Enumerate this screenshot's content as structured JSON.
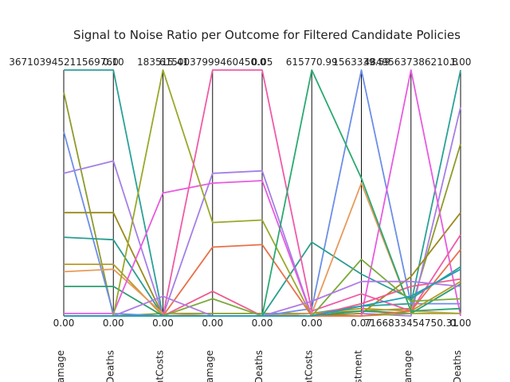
{
  "chart_data": {
    "type": "line",
    "subtype": "parallel-coordinates",
    "title": "Signal to Noise Ratio per Outcome for Filtered Candidate Policies",
    "axes": [
      {
        "label": "amage",
        "top": "367103945211569760",
        "bottom": "0.00"
      },
      {
        "label": "Deaths",
        "top": "0.10",
        "bottom": "0.00"
      },
      {
        "label": "ntCosts",
        "top": "183515.41",
        "bottom": "0.00"
      },
      {
        "label": "amage",
        "top": "6150037999460450.0",
        "bottom": "0.00"
      },
      {
        "label": "Deaths",
        "top": "0.05",
        "bottom": "0.00"
      },
      {
        "label": "ntCosts",
        "top": "615770.99",
        "bottom": "0.00"
      },
      {
        "label": "stment",
        "top": "1563339.59",
        "bottom": "0.07"
      },
      {
        "label": "amage",
        "top": "48495637386210.8",
        "bottom": "7166833454750.31"
      },
      {
        "label": "Deaths",
        "top": "1.00",
        "bottom": "0.00"
      }
    ],
    "series": [
      {
        "color": "#2aa198",
        "values": [
          1.0,
          1.0,
          0.0,
          0.0,
          0.0,
          0.01,
          0.04,
          0.05,
          1.0
        ]
      },
      {
        "color": "#8e9a2b",
        "values": [
          0.91,
          0.0,
          0.01,
          0.01,
          0.01,
          0.01,
          0.02,
          0.03,
          0.7
        ]
      },
      {
        "color": "#6c8ee8",
        "values": [
          0.75,
          0.01,
          0.0,
          0.0,
          0.0,
          0.03,
          1.0,
          0.05,
          0.05
        ]
      },
      {
        "color": "#a57fe6",
        "values": [
          0.58,
          0.63,
          0.0,
          0.58,
          0.59,
          0.0,
          0.01,
          0.0,
          0.85
        ]
      },
      {
        "color": "#9a8b1c",
        "values": [
          0.42,
          0.42,
          0.0,
          0.0,
          0.0,
          0.0,
          0.01,
          0.16,
          0.42
        ]
      },
      {
        "color": "#2a9d8f",
        "values": [
          0.32,
          0.31,
          0.0,
          0.0,
          0.0,
          0.3,
          0.17,
          0.07,
          0.2
        ]
      },
      {
        "color": "#b89a2a",
        "values": [
          0.21,
          0.21,
          0.0,
          0.0,
          0.0,
          0.01,
          0.03,
          0.02,
          0.14
        ]
      },
      {
        "color": "#e89a5a",
        "values": [
          0.18,
          0.19,
          0.01,
          0.0,
          0.0,
          0.01,
          0.54,
          0.02,
          0.01
        ]
      },
      {
        "color": "#2a9d6f",
        "values": [
          0.12,
          0.12,
          0.0,
          0.0,
          0.0,
          0.0,
          0.02,
          0.01,
          0.13
        ]
      },
      {
        "color": "#e85ae0",
        "values": [
          0.01,
          0.01,
          0.5,
          0.54,
          0.55,
          0.0,
          0.0,
          1.0,
          0.0
        ]
      },
      {
        "color": "#9aa82a",
        "values": [
          0.0,
          0.0,
          1.0,
          0.38,
          0.39,
          0.0,
          0.0,
          0.01,
          0.01
        ]
      },
      {
        "color": "#f05aa8",
        "values": [
          0.0,
          0.0,
          0.0,
          1.0,
          1.0,
          0.02,
          0.09,
          0.02,
          0.33
        ]
      },
      {
        "color": "#e8704a",
        "values": [
          0.0,
          0.0,
          0.0,
          0.28,
          0.29,
          0.0,
          0.0,
          0.02,
          0.27
        ]
      },
      {
        "color": "#f05a8a",
        "values": [
          0.0,
          0.0,
          0.0,
          0.1,
          0.0,
          0.0,
          0.05,
          0.12,
          0.15
        ]
      },
      {
        "color": "#2aa970",
        "values": [
          0.0,
          0.0,
          0.0,
          0.0,
          0.0,
          1.0,
          0.56,
          0.02,
          0.03
        ]
      },
      {
        "color": "#7aaa3a",
        "values": [
          0.0,
          0.0,
          0.0,
          0.07,
          0.0,
          0.0,
          0.23,
          0.06,
          0.07
        ]
      },
      {
        "color": "#b07ae6",
        "values": [
          0.0,
          0.0,
          0.08,
          0.0,
          0.0,
          0.06,
          0.14,
          0.14,
          0.12
        ]
      },
      {
        "color": "#1aa0b8",
        "values": [
          0.0,
          0.0,
          0.0,
          0.0,
          0.0,
          0.0,
          0.04,
          0.08,
          0.19
        ]
      }
    ]
  }
}
